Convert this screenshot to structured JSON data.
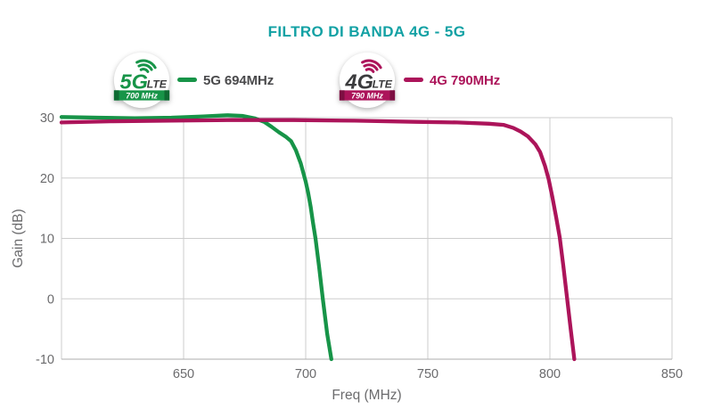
{
  "title": "FILTRO DI BANDA 4G - 5G",
  "colors": {
    "teal": "#12A1A4",
    "green": "#179448",
    "magenta": "#AC145A",
    "axis_text": "#6B6B6D",
    "grid": "#CDCDCD",
    "axis_strong": "#ADADAD",
    "badge_text_dark": "#3B3B3D"
  },
  "legend": [
    {
      "label": "5G 694MHz",
      "label_color": "#4A4A4C",
      "color": "#179448",
      "dark": "#0E6B33",
      "badge": {
        "tech": "5G",
        "tech_color": "#179448",
        "suffix": "LTE",
        "ribbon": "700 MHz"
      }
    },
    {
      "label": "4G 790MHz",
      "label_color": "#AC145A",
      "color": "#AC145A",
      "dark": "#7D0F42",
      "badge": {
        "tech": "4G",
        "tech_color": "#3B3B3D",
        "suffix": "LTE",
        "ribbon": "790 MHz"
      }
    }
  ],
  "chart_data": {
    "type": "line",
    "title": "FILTRO DI BANDA 4G - 5G",
    "xlabel": "Freq (MHz)",
    "ylabel": "Gain (dB)",
    "xlim": [
      600,
      850
    ],
    "ylim": [
      -10,
      30
    ],
    "xticks": [
      650,
      700,
      750,
      800,
      850
    ],
    "yticks": [
      30,
      20,
      10,
      0,
      -10
    ],
    "grid": true,
    "legend_position": "top",
    "series": [
      {
        "name": "5G 694MHz",
        "color": "#179448",
        "points": [
          [
            600,
            30.1
          ],
          [
            615,
            30.0
          ],
          [
            630,
            29.9
          ],
          [
            645,
            30.0
          ],
          [
            658,
            30.2
          ],
          [
            668,
            30.4
          ],
          [
            674,
            30.3
          ],
          [
            679,
            29.9
          ],
          [
            683,
            29.3
          ],
          [
            686,
            28.5
          ],
          [
            689,
            27.6
          ],
          [
            692,
            26.8
          ],
          [
            694,
            26.1
          ],
          [
            696,
            24.6
          ],
          [
            698,
            22.4
          ],
          [
            700,
            19.4
          ],
          [
            701,
            17.6
          ],
          [
            702,
            15.3
          ],
          [
            703,
            12.6
          ],
          [
            704,
            10.0
          ],
          [
            705.5,
            5.2
          ],
          [
            707,
            0.0
          ],
          [
            708.8,
            -5.8
          ],
          [
            710.5,
            -10.0
          ]
        ]
      },
      {
        "name": "4G 790MHz",
        "color": "#AC145A",
        "points": [
          [
            600,
            29.2
          ],
          [
            620,
            29.4
          ],
          [
            645,
            29.5
          ],
          [
            670,
            29.6
          ],
          [
            695,
            29.6
          ],
          [
            720,
            29.5
          ],
          [
            745,
            29.3
          ],
          [
            762,
            29.2
          ],
          [
            775,
            29.0
          ],
          [
            781,
            28.8
          ],
          [
            785,
            28.3
          ],
          [
            788,
            27.7
          ],
          [
            791,
            26.9
          ],
          [
            794,
            25.6
          ],
          [
            796,
            24.3
          ],
          [
            798,
            22.0
          ],
          [
            799.5,
            19.8
          ],
          [
            801,
            16.9
          ],
          [
            802.5,
            13.6
          ],
          [
            804,
            10.2
          ],
          [
            805.5,
            5.4
          ],
          [
            807,
            0.2
          ],
          [
            808.5,
            -5.0
          ],
          [
            810,
            -10.0
          ]
        ]
      }
    ]
  }
}
